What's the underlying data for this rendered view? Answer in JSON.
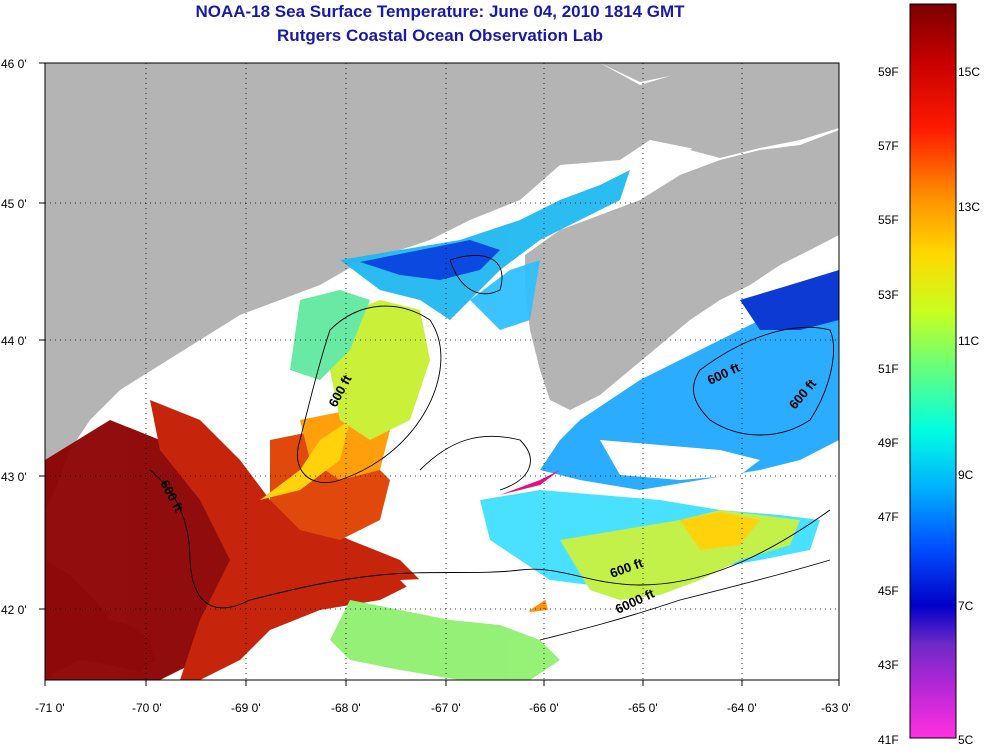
{
  "title": "NOAA-18 Sea Surface Temperature:  June 04, 2010 1814 GMT",
  "subtitle": "Rutgers Coastal Ocean Observation Lab",
  "map": {
    "lon_ticks": [
      "-71 0'",
      "-70 0'",
      "-69 0'",
      "-68 0'",
      "-67 0'",
      "-66 0'",
      "-65 0'",
      "-64 0'",
      "-63 0'"
    ],
    "lat_ticks": [
      "46 0'",
      "45 0'",
      "44 0'",
      "43 0'",
      "42 0'"
    ],
    "contour_labels": [
      "600 ft",
      "600 ft",
      "600 ft",
      "600 ft",
      "600 ft",
      "6000 ft"
    ],
    "colors": {
      "land": "#b4b4b4",
      "ocean_nodata": "#ffffff"
    }
  },
  "colorbar": {
    "fahrenheit_labels": [
      "59F",
      "57F",
      "55F",
      "53F",
      "51F",
      "49F",
      "47F",
      "45F",
      "43F",
      "41F"
    ],
    "celsius_labels": [
      "15C",
      "13C",
      "11C",
      "9C",
      "7C",
      "5C"
    ]
  }
}
